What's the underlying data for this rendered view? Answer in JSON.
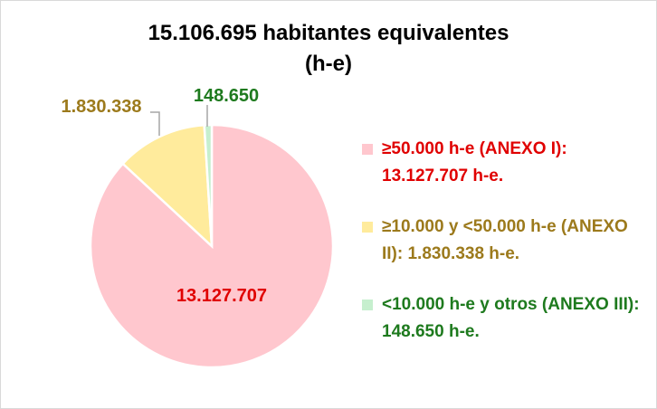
{
  "chart_data": {
    "type": "pie",
    "title": "15.106.695 habitantes equivalentes (h-e)",
    "slices": [
      {
        "value": 13127707,
        "data_label": "13.127.707",
        "legend": "≥50.000 h-e (ANEXO I): 13.127.707 h-e.",
        "color": "#ffc7ce",
        "text_color": "#e00000"
      },
      {
        "value": 1830338,
        "data_label": "1.830.338",
        "legend": "≥10.000 y <50.000 h-e (ANEXO  II): 1.830.338 h-e.",
        "color": "#ffeb9c",
        "text_color": "#9c7a1c"
      },
      {
        "value": 148650,
        "data_label": "148.650",
        "legend": "<10.000 h-e y otros (ANEXO III): 148.650 h-e.",
        "color": "#c6efce",
        "text_color": "#1e7a1e"
      }
    ],
    "legend_position": "right"
  },
  "title_line1": "15.106.695 habitantes equivalentes",
  "title_line2": "(h-e)"
}
